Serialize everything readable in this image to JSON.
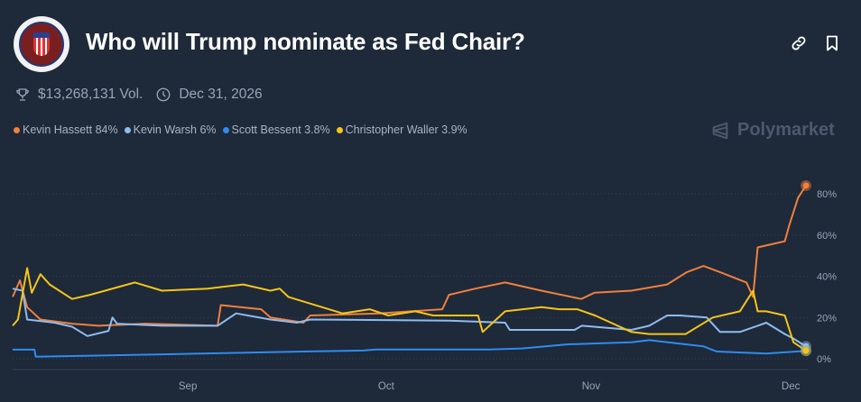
{
  "header": {
    "title": "Who will Trump nominate as Fed Chair?",
    "logo_alt": "Board of Governors of the Federal Reserve System"
  },
  "meta": {
    "volume": "$13,268,131 Vol.",
    "end_date": "Dec 31, 2026"
  },
  "brand": "Polymarket",
  "legend": [
    {
      "label": "Kevin Hassett 84%",
      "color": "#f0803c"
    },
    {
      "label": "Kevin Warsh 6%",
      "color": "#8ebcf0"
    },
    {
      "label": "Scott Bessent 3.8%",
      "color": "#2e8cf0"
    },
    {
      "label": "Christopher Waller 3.9%",
      "color": "#f5c518"
    }
  ],
  "chart_data": {
    "type": "line",
    "x_unit": "days since Aug 6",
    "xlim": [
      0,
      120
    ],
    "ylim": [
      0,
      85
    ],
    "y_ticks": [
      {
        "value": 0,
        "label": "0%"
      },
      {
        "value": 20,
        "label": "20%"
      },
      {
        "value": 40,
        "label": "40%"
      },
      {
        "value": 60,
        "label": "60%"
      },
      {
        "value": 80,
        "label": "80%"
      }
    ],
    "x_ticks": [
      {
        "value": 26.5,
        "label": "Sep"
      },
      {
        "value": 56.5,
        "label": "Oct"
      },
      {
        "value": 87.5,
        "label": "Nov"
      },
      {
        "value": 117.7,
        "label": "Dec"
      }
    ],
    "grid": true,
    "series": [
      {
        "name": "Kevin Hassett",
        "color": "#f0803c",
        "points": [
          [
            0,
            30
          ],
          [
            1.1,
            38
          ],
          [
            2.2,
            25
          ],
          [
            4.2,
            19
          ],
          [
            9,
            17
          ],
          [
            13,
            16
          ],
          [
            20,
            17
          ],
          [
            31,
            16
          ],
          [
            31.5,
            26
          ],
          [
            37.6,
            24
          ],
          [
            39,
            20
          ],
          [
            44,
            17.5
          ],
          [
            45,
            21
          ],
          [
            55.4,
            22
          ],
          [
            65,
            24
          ],
          [
            66,
            31
          ],
          [
            70,
            34
          ],
          [
            74.5,
            37
          ],
          [
            80,
            33
          ],
          [
            86,
            29
          ],
          [
            88,
            32
          ],
          [
            93.6,
            33
          ],
          [
            99,
            36
          ],
          [
            102,
            42
          ],
          [
            104.5,
            45
          ],
          [
            107,
            42
          ],
          [
            111,
            37
          ],
          [
            112,
            30
          ],
          [
            112.7,
            54
          ],
          [
            116.8,
            57
          ],
          [
            117.5,
            65
          ],
          [
            118.8,
            78
          ],
          [
            120,
            84
          ]
        ]
      },
      {
        "name": "Kevin Warsh",
        "color": "#8ebcf0",
        "points": [
          [
            0,
            34
          ],
          [
            1.5,
            33
          ],
          [
            2.2,
            19
          ],
          [
            6.3,
            17.5
          ],
          [
            9,
            15.5
          ],
          [
            11.3,
            11
          ],
          [
            14.5,
            13.5
          ],
          [
            15.1,
            20
          ],
          [
            15.8,
            17
          ],
          [
            22.6,
            16
          ],
          [
            31,
            16
          ],
          [
            33.8,
            22
          ],
          [
            39,
            19
          ],
          [
            43,
            17.5
          ],
          [
            45,
            19
          ],
          [
            66,
            18.5
          ],
          [
            74.5,
            17.5
          ],
          [
            75.2,
            14
          ],
          [
            85,
            14
          ],
          [
            86.1,
            16
          ],
          [
            93.6,
            14
          ],
          [
            96.3,
            16
          ],
          [
            99,
            21
          ],
          [
            101,
            21
          ],
          [
            105,
            20
          ],
          [
            107,
            13
          ],
          [
            110,
            13
          ],
          [
            112.7,
            16
          ],
          [
            114,
            17.5
          ],
          [
            116.8,
            12
          ],
          [
            118,
            10
          ],
          [
            120,
            6
          ]
        ]
      },
      {
        "name": "Scott Bessent",
        "color": "#2e8cf0",
        "points": [
          [
            0,
            4.4
          ],
          [
            3.3,
            4.4
          ],
          [
            3.5,
            1
          ],
          [
            21,
            2
          ],
          [
            44,
            3.5
          ],
          [
            53,
            4
          ],
          [
            55,
            4.5
          ],
          [
            72,
            4.5
          ],
          [
            77,
            5
          ],
          [
            84,
            7
          ],
          [
            93.6,
            8
          ],
          [
            96.3,
            9
          ],
          [
            104.5,
            6
          ],
          [
            106.5,
            3.5
          ],
          [
            114,
            2.5
          ],
          [
            120,
            3.8
          ]
        ]
      },
      {
        "name": "Christopher Waller",
        "color": "#f5c518",
        "points": [
          [
            0,
            16
          ],
          [
            0.8,
            19
          ],
          [
            2.2,
            44
          ],
          [
            2.9,
            32
          ],
          [
            4.2,
            41
          ],
          [
            5.6,
            36
          ],
          [
            9,
            29
          ],
          [
            11.7,
            31
          ],
          [
            18.5,
            37
          ],
          [
            22.6,
            33
          ],
          [
            29.5,
            34
          ],
          [
            34.9,
            36
          ],
          [
            39,
            33
          ],
          [
            40.4,
            34
          ],
          [
            41.7,
            30
          ],
          [
            49.9,
            22
          ],
          [
            54,
            24
          ],
          [
            56.8,
            21
          ],
          [
            60.9,
            23
          ],
          [
            63.6,
            21
          ],
          [
            70.4,
            21
          ],
          [
            71.1,
            13
          ],
          [
            74.5,
            23
          ],
          [
            80,
            25
          ],
          [
            82.7,
            24
          ],
          [
            85.4,
            24
          ],
          [
            88.1,
            21
          ],
          [
            93.6,
            13
          ],
          [
            96.3,
            12
          ],
          [
            101.8,
            12
          ],
          [
            105.9,
            20
          ],
          [
            110,
            23
          ],
          [
            112,
            33
          ],
          [
            112.7,
            23
          ],
          [
            114,
            23
          ],
          [
            116.8,
            21
          ],
          [
            118.1,
            8
          ],
          [
            120,
            3.9
          ]
        ]
      }
    ]
  }
}
